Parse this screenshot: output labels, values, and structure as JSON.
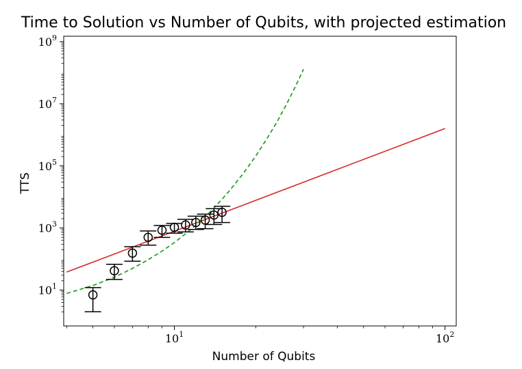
{
  "chart_data": {
    "type": "scatter",
    "title": "Time to Solution vs Number of Qubits, with projected estimation",
    "xlabel": "Number of Qubits",
    "ylabel": "TTS",
    "xscale": "log",
    "yscale": "log",
    "xlim": [
      3.9,
      110
    ],
    "ylim": [
      0.7,
      1500000000
    ],
    "x_ticks": [
      {
        "value": 10,
        "base": "10",
        "exp": "1"
      },
      {
        "value": 100,
        "base": "10",
        "exp": "2"
      }
    ],
    "y_ticks": [
      {
        "value": 10,
        "base": "10",
        "exp": "1"
      },
      {
        "value": 1000,
        "base": "10",
        "exp": "3"
      },
      {
        "value": 100000,
        "base": "10",
        "exp": "5"
      },
      {
        "value": 10000000,
        "base": "10",
        "exp": "7"
      },
      {
        "value": 1000000000,
        "base": "10",
        "exp": "9"
      }
    ],
    "grid": false,
    "legend": "none",
    "series": [
      {
        "kind": "errorbar-points",
        "color": "#000000",
        "points": [
          {
            "x": 5,
            "y": 7,
            "ylow": 2,
            "yhigh": 12
          },
          {
            "x": 6,
            "y": 42,
            "ylow": 22,
            "yhigh": 68
          },
          {
            "x": 7,
            "y": 155,
            "ylow": 85,
            "yhigh": 250
          },
          {
            "x": 8,
            "y": 500,
            "ylow": 280,
            "yhigh": 800
          },
          {
            "x": 9,
            "y": 850,
            "ylow": 500,
            "yhigh": 1200
          },
          {
            "x": 10,
            "y": 1050,
            "ylow": 680,
            "yhigh": 1400
          },
          {
            "x": 11,
            "y": 1250,
            "ylow": 750,
            "yhigh": 1900
          },
          {
            "x": 12,
            "y": 1500,
            "ylow": 900,
            "yhigh": 2400
          },
          {
            "x": 13,
            "y": 1800,
            "ylow": 950,
            "yhigh": 2800
          },
          {
            "x": 14,
            "y": 2600,
            "ylow": 1300,
            "yhigh": 4200
          },
          {
            "x": 15,
            "y": 3200,
            "ylow": 1500,
            "yhigh": 5000
          }
        ]
      },
      {
        "kind": "power-law-fit",
        "color": "#d62728",
        "style": "solid",
        "x": [
          4,
          100
        ],
        "y": [
          38,
          1600000
        ]
      },
      {
        "kind": "exponential-projection",
        "color": "#2ca02c",
        "style": "dashed",
        "x": [
          4,
          5,
          6,
          7,
          8,
          9,
          10,
          11,
          12,
          13,
          14,
          15,
          16,
          18,
          20,
          22,
          24,
          26,
          28,
          30
        ],
        "y": [
          7.8,
          14,
          26,
          50,
          95,
          180,
          340,
          650,
          1230,
          2340,
          4400,
          8400,
          16000,
          58000,
          210000,
          760000,
          2700000,
          9900000,
          36000000,
          130000000
        ]
      }
    ]
  }
}
